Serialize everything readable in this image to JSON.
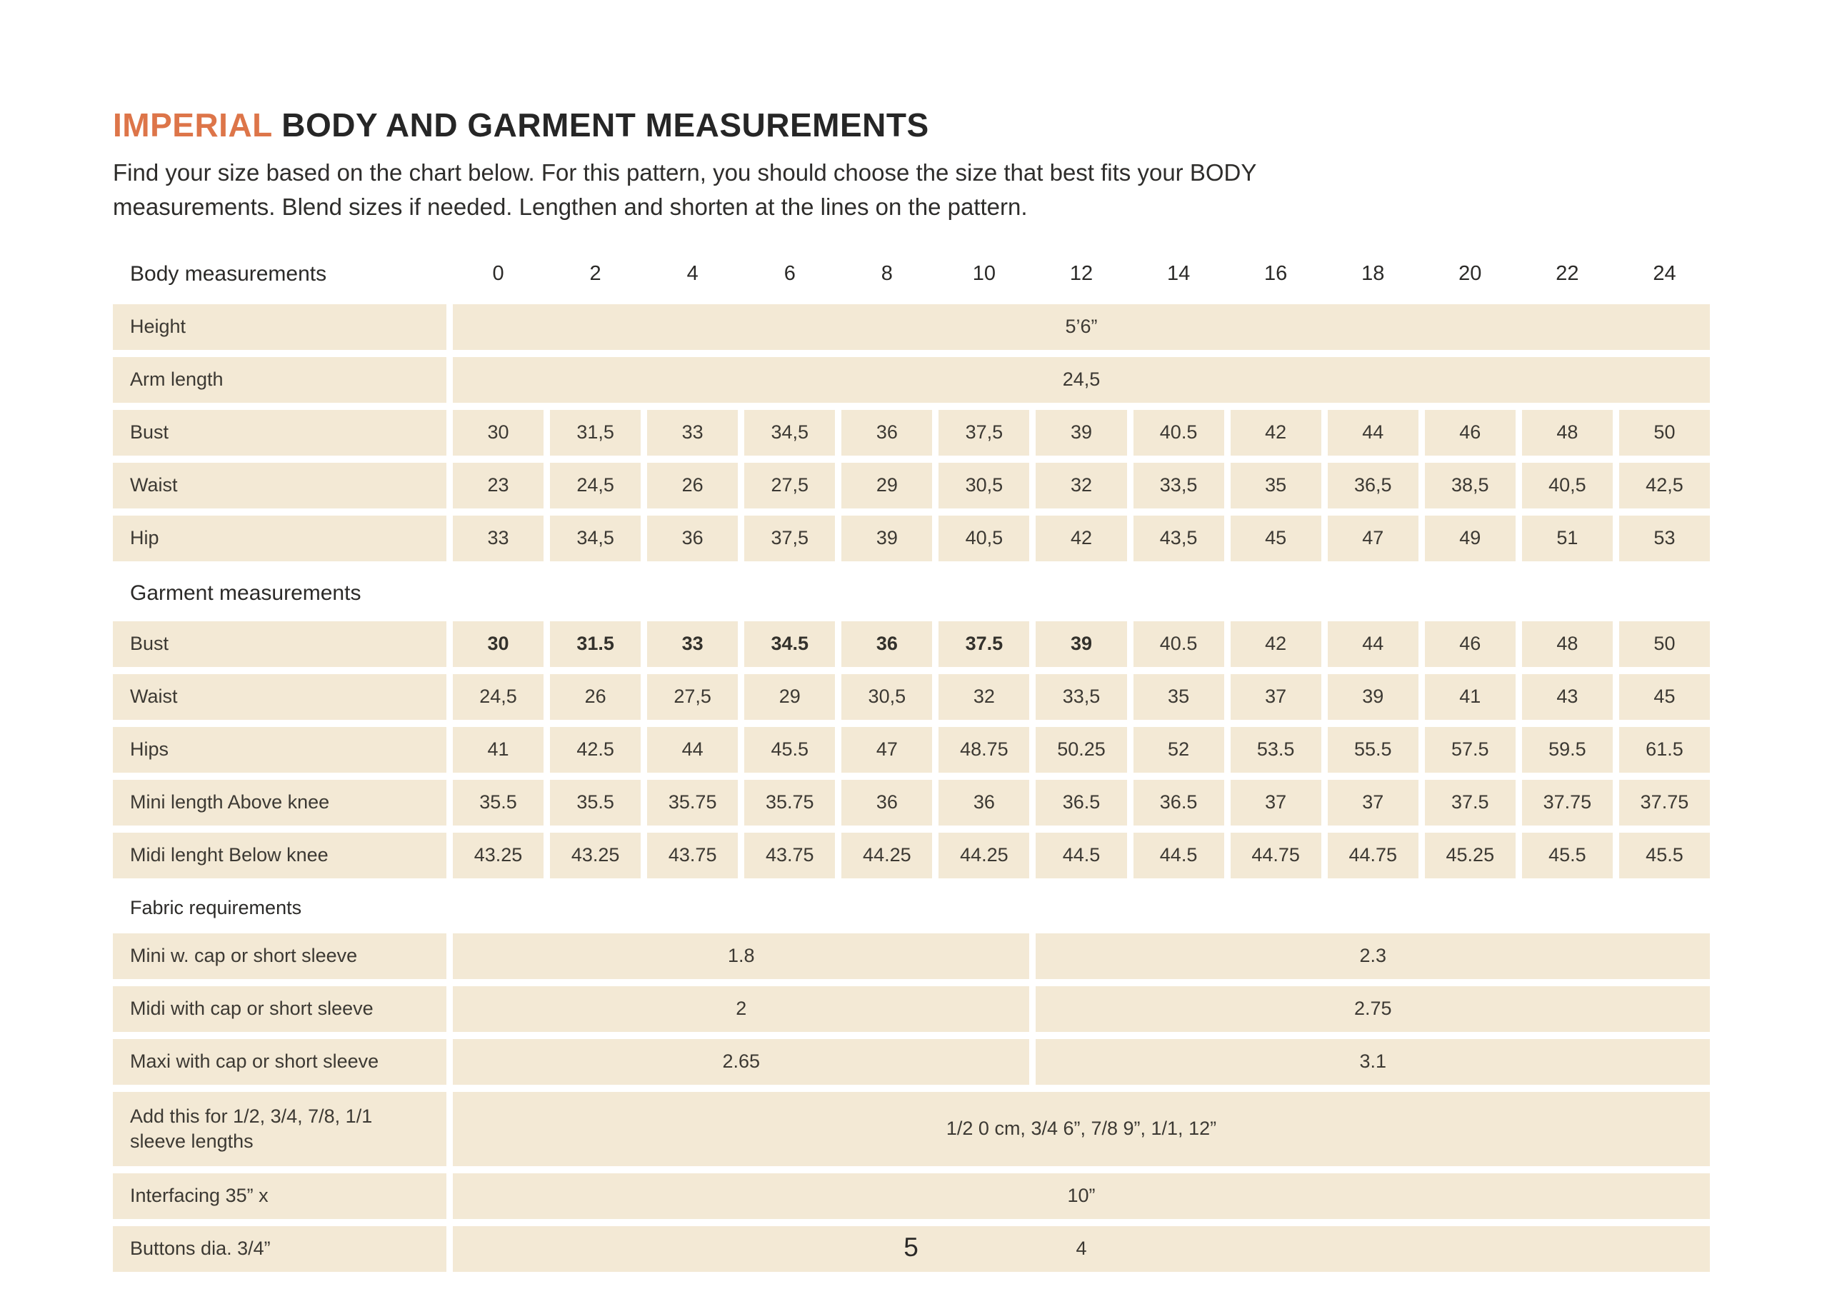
{
  "colors": {
    "accent": "#DD7549",
    "cell_bg": "#F3E9D5"
  },
  "header": {
    "title_accent": "IMPERIAL",
    "title_rest": " BODY AND GARMENT MEASUREMENTS",
    "intro_line1": "Find your size based on the chart below. For this pattern, you should choose the size that best fits your BODY",
    "intro_line2": "measurements. Blend sizes if needed. Lengthen and shorten at the lines on the pattern."
  },
  "table": {
    "header_label": "Body measurements",
    "sizes": [
      "0",
      "2",
      "4",
      "6",
      "8",
      "10",
      "12",
      "14",
      "16",
      "18",
      "20",
      "22",
      "24"
    ],
    "sections": [
      {
        "title": "",
        "rows": [
          {
            "label": "Height",
            "type": "span",
            "value": "5’6”"
          },
          {
            "label": "Arm length",
            "type": "span",
            "value": "24,5"
          },
          {
            "label": "Bust",
            "type": "cells",
            "values": [
              "30",
              "31,5",
              "33",
              "34,5",
              "36",
              "37,5",
              "39",
              "40.5",
              "42",
              "44",
              "46",
              "48",
              "50"
            ]
          },
          {
            "label": "Waist",
            "type": "cells",
            "values": [
              "23",
              "24,5",
              "26",
              "27,5",
              "29",
              "30,5",
              "32",
              "33,5",
              "35",
              "36,5",
              "38,5",
              "40,5",
              "42,5"
            ]
          },
          {
            "label": "Hip",
            "type": "cells",
            "values": [
              "33",
              "34,5",
              "36",
              "37,5",
              "39",
              "40,5",
              "42",
              "43,5",
              "45",
              "47",
              "49",
              "51",
              "53"
            ]
          }
        ]
      },
      {
        "title": "Garment measurements",
        "rows": [
          {
            "label": "Bust",
            "type": "cells",
            "bold_until": 7,
            "values": [
              "30",
              "31.5",
              "33",
              "34.5",
              "36",
              "37.5",
              "39",
              "40.5",
              "42",
              "44",
              "46",
              "48",
              "50"
            ]
          },
          {
            "label": "Waist",
            "type": "cells",
            "values": [
              "24,5",
              "26",
              "27,5",
              "29",
              "30,5",
              "32",
              "33,5",
              "35",
              "37",
              "39",
              "41",
              "43",
              "45"
            ]
          },
          {
            "label": "Hips",
            "type": "cells",
            "values": [
              "41",
              "42.5",
              "44",
              "45.5",
              "47",
              "48.75",
              "50.25",
              "52",
              "53.5",
              "55.5",
              "57.5",
              "59.5",
              "61.5"
            ]
          },
          {
            "label": "Mini length Above knee",
            "type": "cells",
            "values": [
              "35.5",
              "35.5",
              "35.75",
              "35.75",
              "36",
              "36",
              "36.5",
              "36.5",
              "37",
              "37",
              "37.5",
              "37.75",
              "37.75"
            ]
          },
          {
            "label": "Midi lenght Below knee",
            "type": "cells",
            "values": [
              "43.25",
              "43.25",
              "43.75",
              "43.75",
              "44.25",
              "44.25",
              "44.5",
              "44.5",
              "44.75",
              "44.75",
              "45.25",
              "45.5",
              "45.5"
            ]
          }
        ]
      },
      {
        "title": "Fabric requirements",
        "small_title": true,
        "rows": [
          {
            "label": "Mini w. cap or short sleeve",
            "type": "split",
            "left": "1.8",
            "right": "2.3"
          },
          {
            "label": "Midi with cap or short sleeve",
            "type": "split",
            "left": "2",
            "right": "2.75"
          },
          {
            "label": "Maxi with cap or short sleeve",
            "type": "split",
            "left": "2.65",
            "right": "3.1"
          },
          {
            "label": "Add this for 1/2, 3/4, 7/8, 1/1 sleeve lengths",
            "type": "span",
            "tall": true,
            "value": "1/2 0 cm, 3/4 6”, 7/8 9”, 1/1, 12”"
          },
          {
            "label": "Interfacing 35” x",
            "type": "span",
            "value": "10”"
          },
          {
            "label": "Buttons dia. 3/4”",
            "type": "span",
            "value": "4"
          }
        ]
      }
    ]
  },
  "footer": {
    "page_number": "5"
  }
}
